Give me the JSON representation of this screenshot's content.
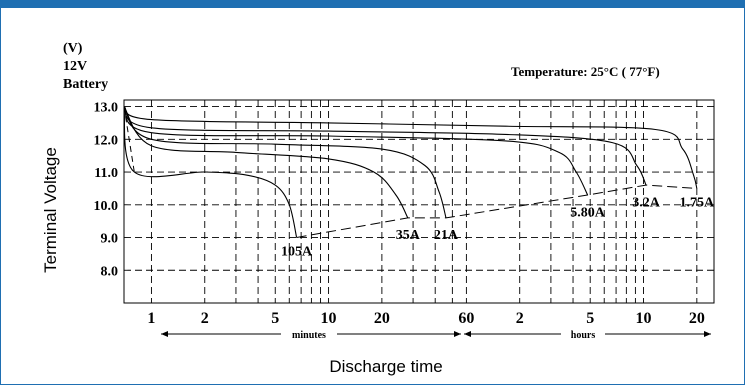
{
  "header_color": "#1f6fb2",
  "chart_data": {
    "type": "line",
    "units_label": "(V)",
    "battery_line1": "12V",
    "battery_line2": "Battery",
    "temperature": "Temperature: 25°C ( 77°F)",
    "ylabel": "Terminal Voltage",
    "xlabel": "Discharge time",
    "xscale": "log",
    "ylim": [
      7.0,
      13.2
    ],
    "xlim_minutes": [
      0.7,
      1500
    ],
    "y_ticks": [
      {
        "v": 13.0,
        "label": "13.0"
      },
      {
        "v": 12.0,
        "label": "12.0"
      },
      {
        "v": 11.0,
        "label": "11.0"
      },
      {
        "v": 10.0,
        "label": "10.0"
      },
      {
        "v": 9.0,
        "label": "9.0"
      },
      {
        "v": 8.0,
        "label": "8.0"
      }
    ],
    "x_ticks": [
      {
        "min": 1,
        "label": "1"
      },
      {
        "min": 2,
        "label": "2"
      },
      {
        "min": 5,
        "label": "5"
      },
      {
        "min": 10,
        "label": "10"
      },
      {
        "min": 20,
        "label": "20"
      },
      {
        "min": 60,
        "label": "60"
      },
      {
        "min": 120,
        "label": "2"
      },
      {
        "min": 300,
        "label": "5"
      },
      {
        "min": 600,
        "label": "10"
      },
      {
        "min": 1200,
        "label": "20"
      }
    ],
    "minutes_label": "minutes",
    "hours_label": "hours",
    "grid": true,
    "series": [
      {
        "name": "105A",
        "points": [
          [
            0.7,
            13.0
          ],
          [
            0.8,
            11.0
          ],
          [
            2,
            11.0
          ],
          [
            3.5,
            10.9
          ],
          [
            5,
            10.6
          ],
          [
            6,
            10.0
          ],
          [
            6.6,
            9.0
          ]
        ]
      },
      {
        "name": "35A",
        "points": [
          [
            0.7,
            13.0
          ],
          [
            1,
            11.8
          ],
          [
            3,
            11.6
          ],
          [
            10,
            11.4
          ],
          [
            18,
            11.0
          ],
          [
            24,
            10.3
          ],
          [
            28,
            9.6
          ]
        ]
      },
      {
        "name": "21A",
        "points": [
          [
            0.7,
            13.0
          ],
          [
            1,
            12.0
          ],
          [
            5,
            11.85
          ],
          [
            20,
            11.7
          ],
          [
            35,
            11.2
          ],
          [
            42,
            10.4
          ],
          [
            46,
            9.6
          ]
        ]
      },
      {
        "name": "5.80A",
        "points": [
          [
            0.7,
            13.0
          ],
          [
            1,
            12.2
          ],
          [
            10,
            12.1
          ],
          [
            100,
            11.95
          ],
          [
            200,
            11.6
          ],
          [
            250,
            11.0
          ],
          [
            290,
            10.3
          ]
        ]
      },
      {
        "name": "3.2A",
        "points": [
          [
            0.7,
            13.0
          ],
          [
            1,
            12.35
          ],
          [
            10,
            12.25
          ],
          [
            100,
            12.15
          ],
          [
            400,
            11.9
          ],
          [
            550,
            11.2
          ],
          [
            620,
            10.6
          ]
        ]
      },
      {
        "name": "1.75A",
        "points": [
          [
            0.7,
            13.0
          ],
          [
            1,
            12.6
          ],
          [
            10,
            12.5
          ],
          [
            100,
            12.4
          ],
          [
            700,
            12.3
          ],
          [
            1000,
            11.7
          ],
          [
            1150,
            10.9
          ],
          [
            1200,
            10.5
          ]
        ]
      }
    ],
    "cutoff_line": {
      "style": "dashed",
      "points": [
        [
          6.6,
          9.0
        ],
        [
          28,
          9.6
        ],
        [
          46,
          9.6
        ],
        [
          290,
          10.3
        ],
        [
          620,
          10.6
        ],
        [
          1200,
          10.5
        ]
      ]
    },
    "initial_dashed": {
      "style": "dashed",
      "points": [
        [
          0.7,
          13.0
        ],
        [
          0.8,
          11.0
        ]
      ]
    },
    "labels": [
      {
        "text": "105A",
        "x": 6.6,
        "y": 8.6
      },
      {
        "text": "35A",
        "x": 28,
        "y": 9.1
      },
      {
        "text": "21A",
        "x": 46,
        "y": 9.1
      },
      {
        "text": "5.80A",
        "x": 290,
        "y": 9.8
      },
      {
        "text": "3.2A",
        "x": 620,
        "y": 10.1
      },
      {
        "text": "1.75A",
        "x": 1200,
        "y": 10.1
      }
    ]
  }
}
